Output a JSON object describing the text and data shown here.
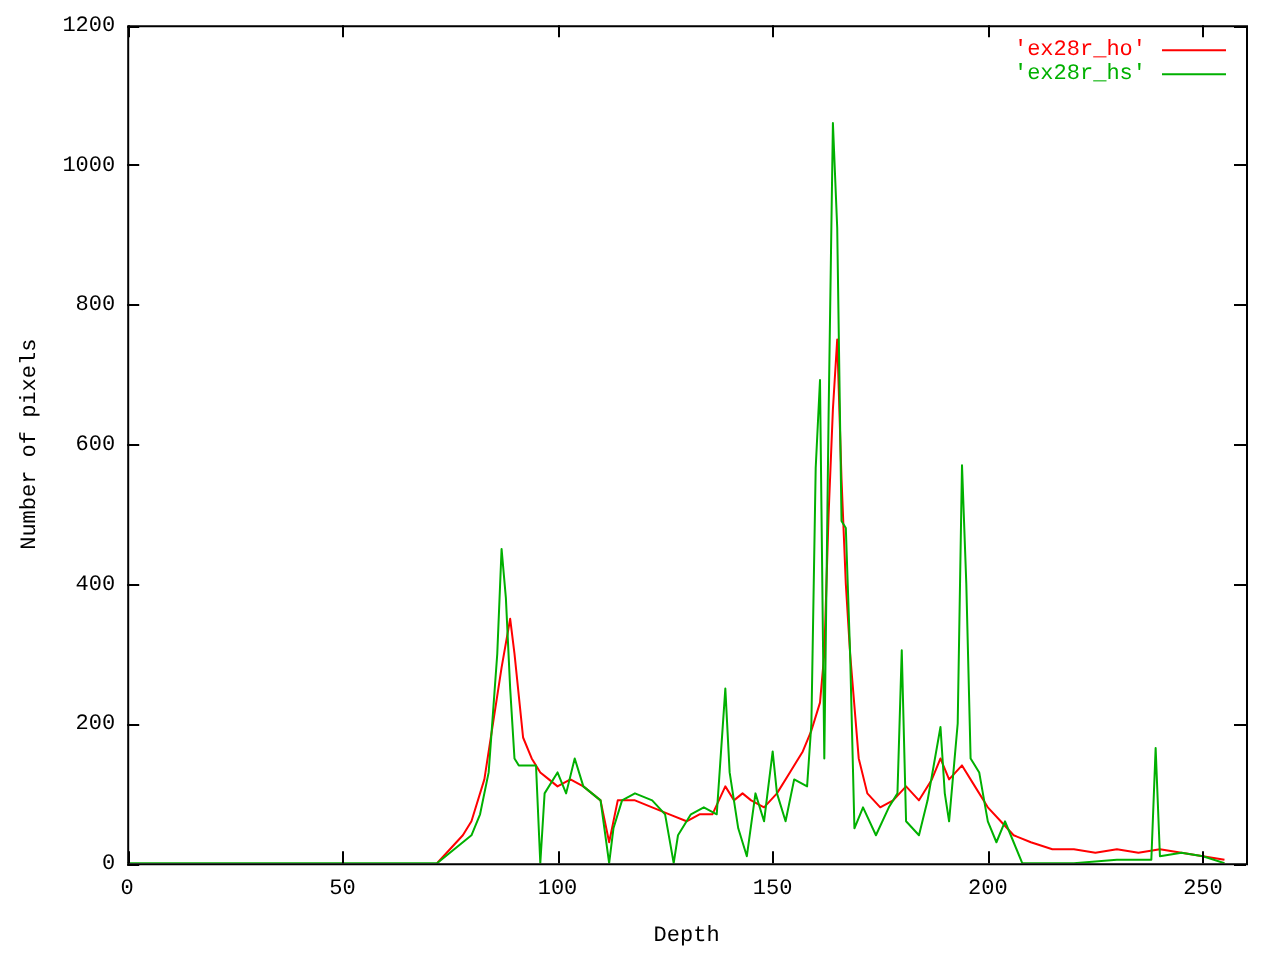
{
  "chart_data": {
    "type": "line",
    "xlabel": "Depth",
    "ylabel": "Number of pixels",
    "xlim": [
      0,
      260
    ],
    "xticks": [
      0,
      50,
      100,
      150,
      200,
      250
    ],
    "ylim": [
      0,
      1200
    ],
    "yticks": [
      0,
      200,
      400,
      600,
      800,
      1000,
      1200
    ],
    "grid": false,
    "legend": "top right",
    "marker": "none",
    "line_style": "solid",
    "series": [
      {
        "name": "'ex28r_ho'",
        "color": "#ff0000",
        "x": [
          72,
          75,
          78,
          80,
          83,
          85,
          87,
          89,
          90,
          92,
          94,
          96,
          98,
          100,
          103,
          106,
          110,
          112,
          114,
          118,
          122,
          126,
          130,
          133,
          136,
          139,
          141,
          143,
          145,
          148,
          151,
          154,
          157,
          159,
          161,
          162,
          163,
          164,
          165,
          166,
          167,
          168,
          170,
          172,
          175,
          178,
          181,
          184,
          187,
          189,
          191,
          194,
          197,
          200,
          203,
          206,
          210,
          215,
          220,
          225,
          230,
          235,
          240,
          245,
          250,
          255
        ],
        "values": [
          0,
          20,
          40,
          60,
          120,
          200,
          280,
          350,
          300,
          180,
          150,
          130,
          120,
          110,
          120,
          110,
          90,
          30,
          90,
          90,
          80,
          70,
          60,
          70,
          70,
          110,
          90,
          100,
          90,
          80,
          100,
          130,
          160,
          190,
          230,
          300,
          500,
          650,
          750,
          550,
          400,
          300,
          150,
          100,
          80,
          90,
          110,
          90,
          120,
          150,
          120,
          140,
          110,
          80,
          60,
          40,
          30,
          20,
          20,
          15,
          20,
          15,
          20,
          15,
          10,
          5
        ]
      },
      {
        "name": "'ex28r_hs'",
        "color": "#00b000",
        "x": [
          0,
          72,
          75,
          78,
          80,
          82,
          84,
          86,
          87,
          88,
          89,
          90,
          91,
          93,
          95,
          96,
          97,
          100,
          102,
          104,
          106,
          108,
          110,
          112,
          113,
          115,
          118,
          122,
          125,
          127,
          128,
          131,
          134,
          137,
          139,
          140,
          142,
          144,
          146,
          148,
          150,
          151,
          153,
          155,
          158,
          159,
          160,
          161,
          162,
          163,
          164,
          165,
          166,
          167,
          168,
          169,
          171,
          174,
          177,
          179,
          180,
          181,
          184,
          186,
          189,
          190,
          191,
          193,
          194,
          195,
          196,
          198,
          200,
          202,
          204,
          206,
          208,
          210,
          220,
          230,
          235,
          238,
          239,
          240,
          245,
          250,
          255
        ],
        "values": [
          0,
          0,
          15,
          30,
          40,
          70,
          130,
          300,
          450,
          380,
          250,
          150,
          140,
          140,
          140,
          0,
          100,
          130,
          100,
          150,
          110,
          100,
          90,
          0,
          50,
          90,
          100,
          90,
          70,
          0,
          40,
          70,
          80,
          70,
          250,
          130,
          50,
          10,
          100,
          60,
          160,
          100,
          60,
          120,
          110,
          200,
          566,
          692,
          150,
          642,
          1060,
          910,
          490,
          480,
          300,
          50,
          80,
          40,
          80,
          100,
          305,
          60,
          40,
          90,
          195,
          100,
          60,
          200,
          570,
          400,
          150,
          130,
          60,
          30,
          60,
          30,
          0,
          0,
          0,
          5,
          5,
          5,
          165,
          10,
          15,
          10,
          0
        ]
      }
    ]
  }
}
